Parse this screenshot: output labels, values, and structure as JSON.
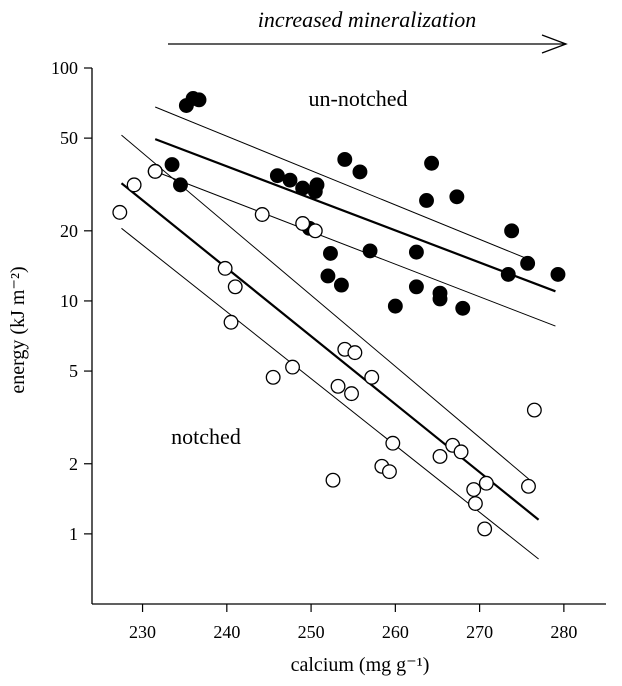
{
  "chart_data": {
    "type": "scatter",
    "title": "",
    "xlabel": "calcium (mg g⁻¹)",
    "ylabel": "energy (kJ m⁻²)",
    "xlim": [
      224,
      285
    ],
    "ylim": [
      0.5,
      100
    ],
    "y_scale": "log",
    "grid": false,
    "x_ticks": [
      230,
      240,
      250,
      260,
      270,
      280
    ],
    "y_ticks": [
      1,
      2,
      5,
      10,
      20,
      50,
      100
    ],
    "x_tick_labels": [
      "230",
      "240",
      "250",
      "260",
      "270",
      "280"
    ],
    "y_tick_labels": [
      "1",
      "2",
      "5",
      "10",
      "20",
      "50",
      "100"
    ],
    "annotations": [
      {
        "text": "increased mineralization",
        "style": "italic",
        "arrow": "right"
      },
      {
        "text": "un-notched"
      },
      {
        "text": "notched"
      }
    ],
    "series": [
      {
        "name": "un-notched",
        "marker": "filled-circle",
        "points": [
          [
            231.5,
            36
          ],
          [
            233.5,
            38.5
          ],
          [
            234.5,
            31.5
          ],
          [
            235.2,
            69
          ],
          [
            236,
            74
          ],
          [
            236.7,
            73
          ],
          [
            246,
            34.5
          ],
          [
            247.5,
            33
          ],
          [
            249,
            30.5
          ],
          [
            249.8,
            20.5
          ],
          [
            250.5,
            29.5
          ],
          [
            250.7,
            31.5
          ],
          [
            252,
            12.8
          ],
          [
            252.3,
            16
          ],
          [
            253.6,
            11.7
          ],
          [
            254,
            40.5
          ],
          [
            255.8,
            35.8
          ],
          [
            257,
            16.4
          ],
          [
            260,
            9.5
          ],
          [
            262.5,
            11.5
          ],
          [
            262.5,
            16.2
          ],
          [
            263.7,
            27
          ],
          [
            264.3,
            39
          ],
          [
            265.3,
            10.2
          ],
          [
            265.3,
            10.8
          ],
          [
            267.3,
            28
          ],
          [
            268,
            9.3
          ],
          [
            273.4,
            13
          ],
          [
            273.8,
            20
          ],
          [
            275.7,
            14.5
          ],
          [
            279.3,
            13
          ]
        ],
        "fit": {
          "x": [
            231.5,
            279
          ],
          "y": [
            49.5,
            11
          ]
        },
        "ci_upper": {
          "x": [
            231.5,
            276
          ],
          "y": [
            68,
            15
          ]
        },
        "ci_lower": {
          "x": [
            231.5,
            279
          ],
          "y": [
            36,
            7.8
          ]
        }
      },
      {
        "name": "notched",
        "marker": "open-circle",
        "points": [
          [
            227.3,
            24
          ],
          [
            229,
            31.5
          ],
          [
            231.5,
            36
          ],
          [
            239.8,
            13.8
          ],
          [
            240.5,
            8.1
          ],
          [
            241,
            11.5
          ],
          [
            244.2,
            23.5
          ],
          [
            245.5,
            4.7
          ],
          [
            247.8,
            5.2
          ],
          [
            249,
            21.5
          ],
          [
            250.5,
            20
          ],
          [
            252.6,
            1.7
          ],
          [
            253.2,
            4.3
          ],
          [
            254,
            6.2
          ],
          [
            254.8,
            4.0
          ],
          [
            255.2,
            6.0
          ],
          [
            257.2,
            4.7
          ],
          [
            258.4,
            1.95
          ],
          [
            259.3,
            1.85
          ],
          [
            259.7,
            2.45
          ],
          [
            265.3,
            2.15
          ],
          [
            266.8,
            2.4
          ],
          [
            267.8,
            2.25
          ],
          [
            269.3,
            1.55
          ],
          [
            269.5,
            1.35
          ],
          [
            270.6,
            1.05
          ],
          [
            270.8,
            1.65
          ],
          [
            275.8,
            1.6
          ],
          [
            276.5,
            3.4
          ]
        ],
        "fit": {
          "x": [
            227.5,
            277
          ],
          "y": [
            32,
            1.15
          ]
        },
        "ci_upper": {
          "x": [
            227.5,
            276
          ],
          "y": [
            51.5,
            1.7
          ]
        },
        "ci_lower": {
          "x": [
            227.5,
            277
          ],
          "y": [
            20.5,
            0.78
          ]
        }
      }
    ]
  }
}
